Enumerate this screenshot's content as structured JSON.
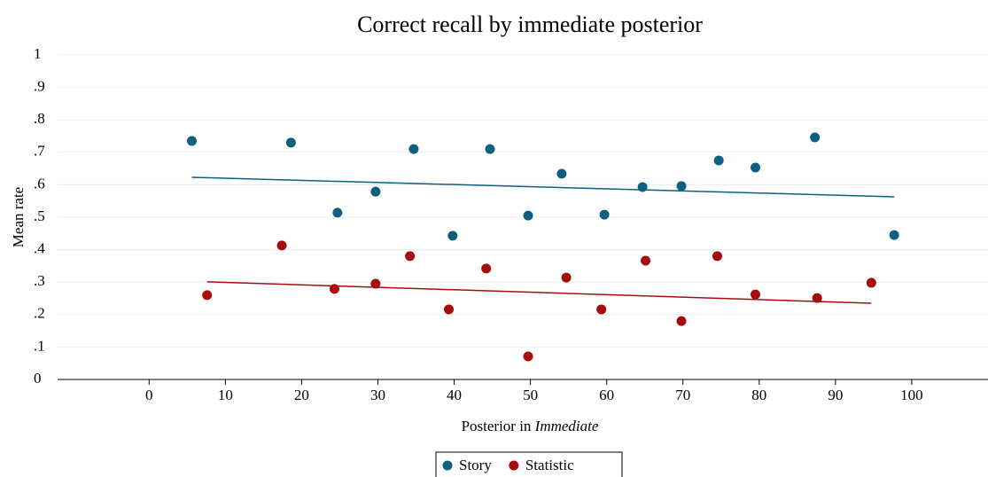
{
  "chart_data": {
    "type": "scatter",
    "title": "Correct recall by immediate posterior",
    "xlabel": {
      "text": "Posterior in",
      "emphasis": "Immediate"
    },
    "ylabel": "Mean rate",
    "xlim": [
      -12,
      110
    ],
    "xticks": [
      0,
      10,
      20,
      30,
      40,
      50,
      60,
      70,
      80,
      90,
      100
    ],
    "ylim": [
      0,
      1
    ],
    "yticks": [
      0,
      {
        "value": 0.1,
        "label": ".1"
      },
      {
        "value": 0.2,
        "label": ".2"
      },
      {
        "value": 0.3,
        "label": ".3"
      },
      {
        "value": 0.4,
        "label": ".4"
      },
      {
        "value": 0.5,
        "label": ".5"
      },
      {
        "value": 0.6,
        "label": ".6"
      },
      {
        "value": 0.7,
        "label": ".7"
      },
      {
        "value": 0.8,
        "label": ".8"
      },
      {
        "value": 0.9,
        "label": ".9"
      },
      1
    ],
    "grid": true,
    "legend": "bottom",
    "series": [
      {
        "name": "Story",
        "color": "#0f5f80",
        "x": [
          5.6,
          18.6,
          24.7,
          29.7,
          34.7,
          39.8,
          44.7,
          49.7,
          54.1,
          59.7,
          64.7,
          69.8,
          74.7,
          79.5,
          87.3,
          97.7
        ],
        "values": [
          0.735,
          0.73,
          0.514,
          0.579,
          0.71,
          0.443,
          0.71,
          0.505,
          0.634,
          0.508,
          0.593,
          0.596,
          0.675,
          0.653,
          0.746,
          0.445
        ],
        "fit": {
          "x": [
            5.6,
            97.7
          ],
          "values": [
            0.623,
            0.563
          ]
        }
      },
      {
        "name": "Statistic",
        "color": "#a50d0d",
        "x": [
          7.6,
          17.4,
          24.3,
          29.7,
          34.2,
          39.3,
          44.2,
          49.7,
          54.7,
          59.3,
          65.1,
          69.8,
          74.5,
          79.5,
          87.6,
          94.7
        ],
        "values": [
          0.26,
          0.413,
          0.279,
          0.295,
          0.38,
          0.216,
          0.342,
          0.071,
          0.314,
          0.216,
          0.366,
          0.18,
          0.38,
          0.262,
          0.251,
          0.298
        ],
        "fit": {
          "x": [
            7.6,
            94.7
          ],
          "values": [
            0.301,
            0.235
          ]
        }
      }
    ]
  }
}
